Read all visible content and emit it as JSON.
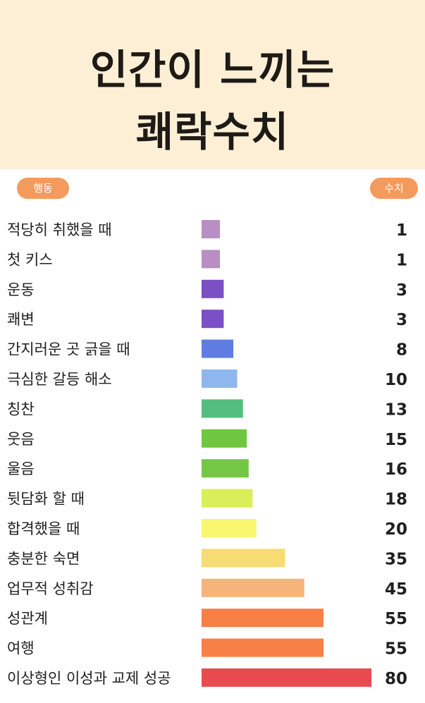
{
  "header": {
    "title_line1": "인간이 느끼는",
    "title_line2": "쾌락수치"
  },
  "columns": {
    "left": "행동",
    "right": "수치"
  },
  "chart_data": {
    "type": "bar",
    "orientation": "horizontal",
    "title": "인간이 느끼는 쾌락수치",
    "xlabel": "수치",
    "ylabel": "행동",
    "xlim": [
      0,
      80
    ],
    "categories": [
      "적당히 취했을 때",
      "첫 키스",
      "운동",
      "쾌변",
      "간지러운 곳 긁을 때",
      "극심한 갈등 해소",
      "칭찬",
      "웃음",
      "울음",
      "뒷담화 할 때",
      "합격했을 때",
      "충분한 숙면",
      "업무적 성취감",
      "성관계",
      "여행",
      "이상형인 이성과 교제 성공"
    ],
    "values": [
      1,
      1,
      3,
      3,
      8,
      10,
      13,
      15,
      16,
      18,
      20,
      35,
      45,
      55,
      55,
      80
    ],
    "colors": [
      "#b88ec4",
      "#b88ec4",
      "#7b4fc6",
      "#7b4fc6",
      "#5f7de0",
      "#8fb7ee",
      "#52bd7c",
      "#6fc63f",
      "#74c744",
      "#d9ee58",
      "#f8f56e",
      "#f6dc72",
      "#f6b37a",
      "#f78046",
      "#f78046",
      "#e84a4f"
    ],
    "grid": false,
    "legend": "none"
  }
}
